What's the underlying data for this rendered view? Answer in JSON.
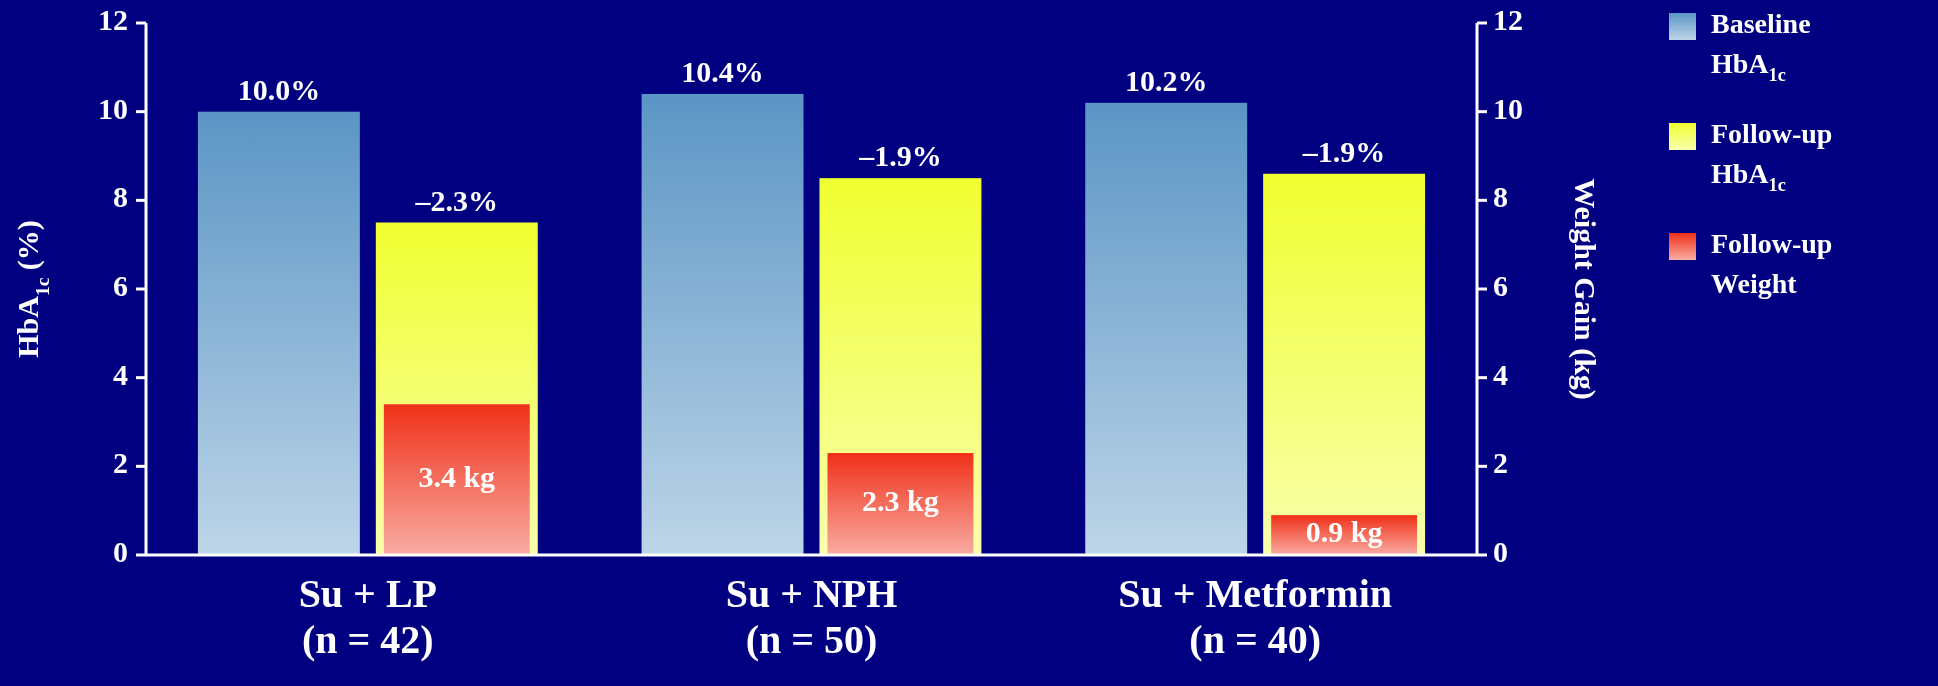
{
  "chart_data": {
    "type": "bar",
    "categories": [
      "Su + LP\n(n = 42)",
      "Su + NPH\n(n = 50)",
      "Su + Metformin\n(n = 40)"
    ],
    "ylabel": "HbA$_{1c}$ (%)",
    "y2label": "Weight Gain (kg)",
    "ylim": [
      0,
      12
    ],
    "yticks": [
      0,
      2,
      4,
      6,
      8,
      10,
      12
    ],
    "y2lim": [
      0,
      12
    ],
    "y2ticks": [
      0,
      2,
      4,
      6,
      8,
      10,
      12
    ],
    "series": [
      {
        "name": "Baseline HbA$_{1c}$",
        "color": "#5b95c5",
        "values": [
          10.0,
          10.4,
          10.2
        ],
        "value_labels": [
          "10.0%",
          "10.4%",
          "10.2%"
        ]
      },
      {
        "name": "Follow-up HbA$_{1c}$",
        "color": "#f0ff30",
        "values": [
          7.5,
          8.5,
          8.6
        ]
      },
      {
        "name": "Follow-up Weight",
        "color": "#f03018",
        "values": [
          3.4,
          2.3,
          0.9
        ],
        "axis": "y2",
        "value_labels": [
          "3.4 kg",
          "2.3 kg",
          "0.9 kg"
        ]
      }
    ],
    "annotations": [
      "–2.3%",
      "–1.9%",
      "–1.9%"
    ],
    "grid": false,
    "legend": "right"
  }
}
